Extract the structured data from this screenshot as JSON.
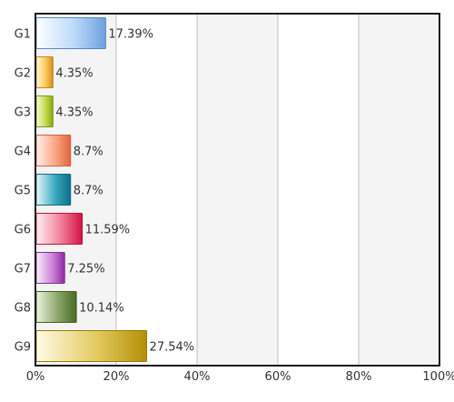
{
  "chart_data": {
    "type": "bar",
    "orientation": "horizontal",
    "categories": [
      "G1",
      "G2",
      "G3",
      "G4",
      "G5",
      "G6",
      "G7",
      "G8",
      "G9"
    ],
    "values": [
      17.39,
      4.35,
      4.35,
      8.7,
      8.7,
      11.59,
      7.25,
      10.14,
      27.54
    ],
    "value_labels": [
      "17.39%",
      "4.35%",
      "4.35%",
      "8.7%",
      "8.7%",
      "11.59%",
      "7.25%",
      "10.14%",
      "27.54%"
    ],
    "x_ticks": [
      0,
      20,
      40,
      60,
      80,
      100
    ],
    "x_tick_labels": [
      "0%",
      "20%",
      "40%",
      "60%",
      "80%",
      "100%"
    ],
    "xlim": [
      0,
      100
    ],
    "grid": true,
    "bar_colors": [
      [
        "#ffffff",
        "#bcd9fb",
        "#6f9fdc"
      ],
      [
        "#fff7df",
        "#fcc95c",
        "#d18f1a"
      ],
      [
        "#f6fbe0",
        "#c4db4c",
        "#87a614"
      ],
      [
        "#fff0ea",
        "#fba786",
        "#e0643e"
      ],
      [
        "#e9f6fa",
        "#3aa9c0",
        "#0d6d86"
      ],
      [
        "#fff0f3",
        "#f07d98",
        "#d21142"
      ],
      [
        "#f9eefb",
        "#cf86d9",
        "#8c2ba0"
      ],
      [
        "#eef3e4",
        "#8aa468",
        "#476b25"
      ],
      [
        "#fffbe6",
        "#e3ca5e",
        "#b38f07"
      ]
    ],
    "bar_borders": [
      "#5a84c4",
      "#c2871c",
      "#7e9c17",
      "#d2613f",
      "#146b80",
      "#c1153f",
      "#84318f",
      "#45621f",
      "#9b7c07"
    ],
    "band_colors": [
      "#f4f4f4",
      "#ffffff"
    ],
    "grid_color": "#bfbfbf",
    "axis_color": "#1a1a1a",
    "label_color": "#333333"
  }
}
